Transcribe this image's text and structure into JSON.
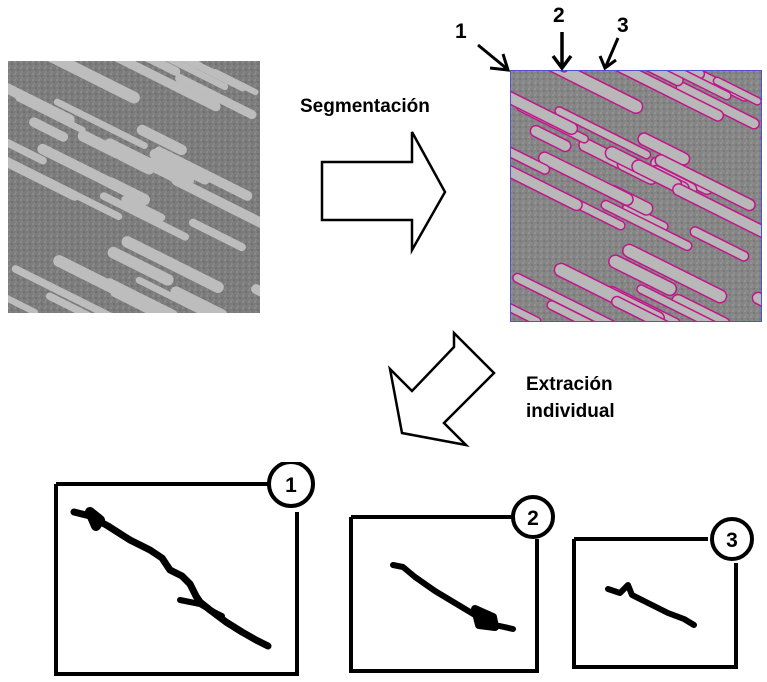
{
  "step1_label": "Segmentación",
  "step2_label_line1": "Extración",
  "step2_label_line2": "individual",
  "pointer_numbers": [
    "1",
    "2",
    "3"
  ],
  "extracted_panels": [
    {
      "number": "1"
    },
    {
      "number": "2"
    },
    {
      "number": "3"
    }
  ],
  "colors": {
    "grain_gray": "#9a9a9a",
    "contour_magenta": "#c0168a",
    "contour_blue": "#3a3ad0"
  }
}
